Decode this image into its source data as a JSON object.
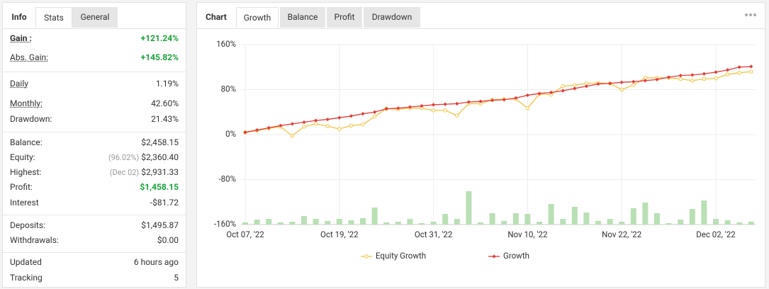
{
  "left_panel": {
    "tabs": [
      "Info",
      "Stats",
      "General"
    ],
    "groups": [
      [
        {
          "label": "Gain :",
          "value": "+121.24%",
          "color": "#1aa33a",
          "underline": true
        },
        {
          "label": "Abs. Gain:",
          "value": "+145.82%",
          "color": "#1aa33a",
          "underline": true
        }
      ],
      [
        {
          "label": "Daily",
          "value": "1.19%",
          "underline": true
        },
        {
          "label": "Monthly:",
          "value": "42.60%",
          "underline": true
        },
        {
          "label": "Drawdown:",
          "value": "21.43%"
        }
      ],
      [
        {
          "label": "Balance:",
          "value": "$2,458.15"
        },
        {
          "label": "Equity:",
          "value": "$2,360.40",
          "note": "(96.02%)"
        },
        {
          "label": "Highest:",
          "value": "$2,931.33",
          "note": "(Dec 02)"
        },
        {
          "label": "Profit:",
          "value": "$1,458.15",
          "color": "#1aa33a"
        },
        {
          "label": "Interest",
          "value": "-$81.72"
        }
      ],
      [
        {
          "label": "Deposits:",
          "value": "$1,495.87"
        },
        {
          "label": "Withdrawals:",
          "value": "$0.00"
        }
      ],
      [
        {
          "label": "Updated",
          "value": "6 hours ago"
        },
        {
          "label": "Tracking",
          "value": "5"
        }
      ]
    ]
  },
  "right_panel": {
    "tabs": [
      "Chart",
      "Growth",
      "Balance",
      "Profit",
      "Drawdown"
    ]
  },
  "chart_data": {
    "type": "line",
    "categories": [
      "Oct 07, '22",
      null,
      null,
      null,
      null,
      null,
      null,
      null,
      "Oct 19, '22",
      null,
      null,
      null,
      null,
      null,
      null,
      null,
      "Oct 31, '22",
      null,
      null,
      null,
      null,
      null,
      null,
      null,
      "Nov 10, '22",
      null,
      null,
      null,
      null,
      null,
      null,
      null,
      "Nov 22, '22",
      null,
      null,
      null,
      null,
      null,
      null,
      null,
      "Dec 02, '22",
      null,
      null,
      null
    ],
    "series": [
      {
        "name": "Equity Growth",
        "color": "#f5c342",
        "values": [
          4,
          7,
          11,
          14,
          -2,
          14,
          19,
          15,
          10,
          16,
          18,
          32,
          46,
          45,
          47,
          47,
          43,
          43,
          34,
          55,
          55,
          62,
          63,
          63,
          47,
          72,
          71,
          86,
          88,
          91,
          92,
          91,
          80,
          88,
          101,
          101,
          101,
          99,
          96,
          99,
          100,
          107,
          110,
          112
        ]
      },
      {
        "name": "Growth",
        "color": "#e53935",
        "values": [
          4,
          8,
          12,
          16,
          19,
          22,
          25,
          27,
          30,
          33,
          37,
          40,
          46,
          47,
          49,
          51,
          53,
          54,
          55,
          58,
          59,
          61,
          62,
          65,
          70,
          73,
          75,
          78,
          82,
          86,
          90,
          91,
          93,
          94,
          96,
          98,
          102,
          105,
          106,
          108,
          111,
          115,
          120,
          121
        ]
      },
      {
        "color": "#b9e0b4",
        "axis": "y2",
        "values": [
          3,
          7,
          8,
          3,
          4,
          12,
          8,
          5,
          8,
          6,
          9,
          24,
          3,
          4,
          8,
          2,
          4,
          15,
          8,
          47,
          3,
          16,
          5,
          16,
          15,
          4,
          29,
          8,
          25,
          17,
          5,
          8,
          4,
          23,
          31,
          16,
          2,
          7,
          22,
          34,
          8,
          6,
          3,
          4
        ]
      }
    ],
    "ylim": [
      -160,
      160
    ],
    "yticks": [
      {
        "value": 160,
        "label": "160%"
      },
      {
        "value": 80,
        "label": "80%"
      },
      {
        "value": 0,
        "label": "0%"
      },
      {
        "value": -80,
        "label": "-80%"
      },
      {
        "value": -160,
        "label": "-160%"
      }
    ],
    "y2lim": [
      0,
      254
    ],
    "grid": true,
    "legend": "bottom"
  }
}
